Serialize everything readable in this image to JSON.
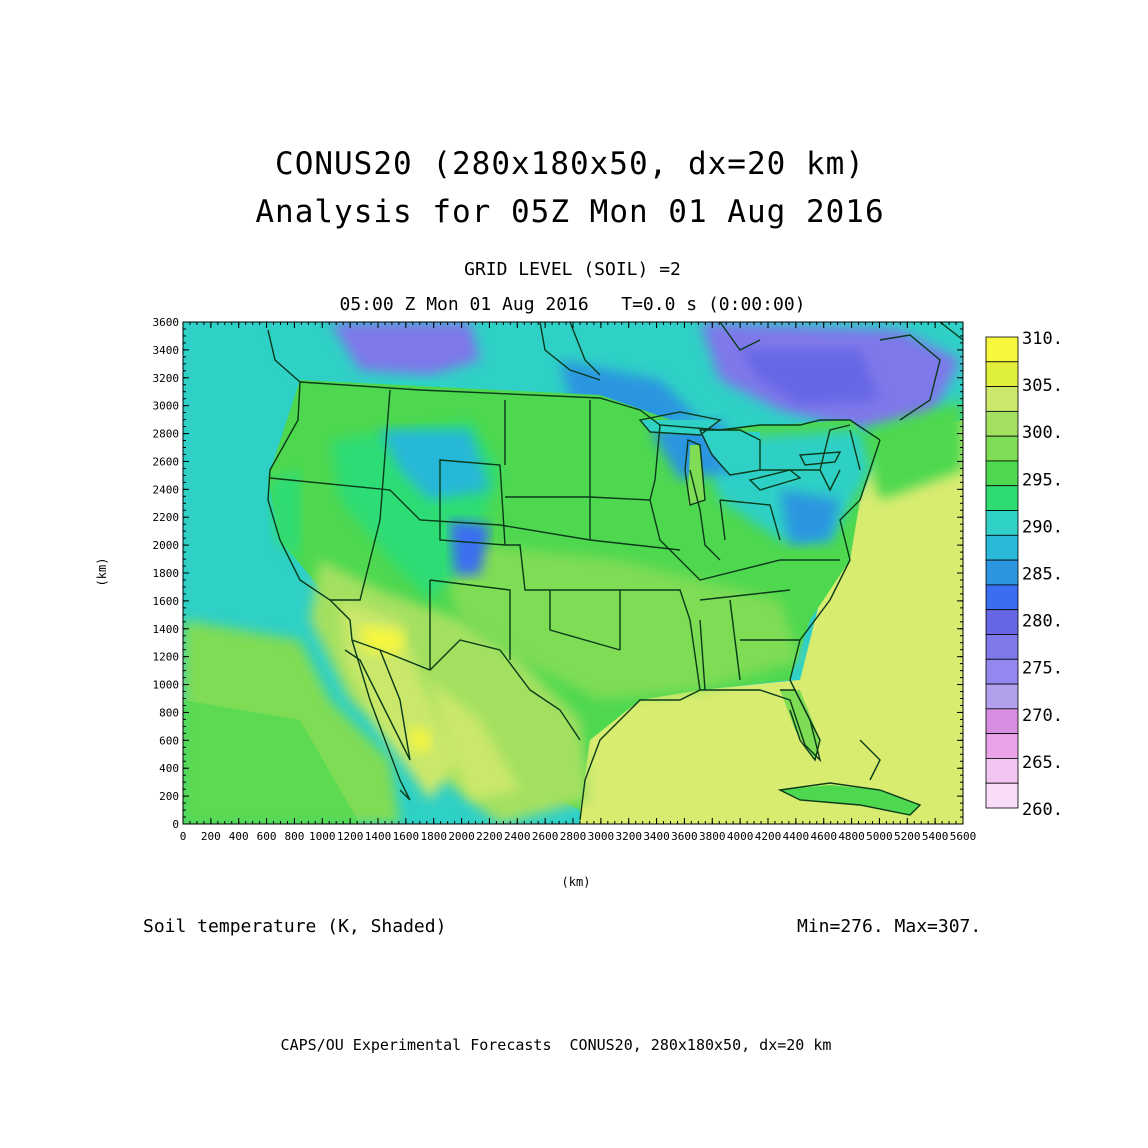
{
  "header": {
    "title_line1": "CONUS20 (280x180x50, dx=20 km)",
    "title_line2": "Analysis for 05Z Mon 01 Aug 2016",
    "subtitle_line1": "GRID LEVEL (SOIL) =2",
    "subtitle_line2": "05:00 Z Mon 01 Aug 2016   T=0.0 s (0:00:00)"
  },
  "map": {
    "x_axis_label": "(km)",
    "y_axis_label": "(km)",
    "x_ticks": [
      "0",
      "200",
      "400",
      "600",
      "800",
      "1000",
      "1200",
      "1400",
      "1600",
      "1800",
      "2000",
      "2200",
      "2400",
      "2600",
      "2800",
      "3000",
      "3200",
      "3400",
      "3600",
      "3800",
      "4000",
      "4200",
      "4400",
      "4600",
      "4800",
      "5000",
      "5200",
      "5400",
      "5600"
    ],
    "y_ticks": [
      "0",
      "200",
      "400",
      "600",
      "800",
      "1000",
      "1200",
      "1400",
      "1600",
      "1800",
      "2000",
      "2200",
      "2400",
      "2600",
      "2800",
      "3000",
      "3200",
      "3400",
      "3600"
    ],
    "x_range_km": [
      0,
      5600
    ],
    "y_range_km": [
      0,
      3600
    ],
    "field": "Soil temperature",
    "units": "K",
    "colors": {
      "ocean_west": "#2fd0c6",
      "ocean_east": "#d8ec70",
      "boundaries": "#0a3a1a"
    }
  },
  "colorbar": {
    "labels": [
      "310.",
      "305.",
      "300.",
      "295.",
      "290.",
      "285.",
      "280.",
      "275.",
      "270.",
      "265.",
      "260."
    ],
    "levels": [
      {
        "value": 307.5,
        "color": "#f7f73e"
      },
      {
        "value": 305,
        "color": "#e0f03a"
      },
      {
        "value": 302.5,
        "color": "#cbe86a"
      },
      {
        "value": 300,
        "color": "#a4e060"
      },
      {
        "value": 297.5,
        "color": "#7fdc55"
      },
      {
        "value": 295,
        "color": "#4ed850"
      },
      {
        "value": 292.5,
        "color": "#2fdc74"
      },
      {
        "value": 290,
        "color": "#2fd0c6"
      },
      {
        "value": 287.5,
        "color": "#28b8d8"
      },
      {
        "value": 285,
        "color": "#2c96e0"
      },
      {
        "value": 282.5,
        "color": "#3a6ef0"
      },
      {
        "value": 280,
        "color": "#6666e6"
      },
      {
        "value": 277.5,
        "color": "#7e78ea"
      },
      {
        "value": 275,
        "color": "#9488f0"
      },
      {
        "value": 272.5,
        "color": "#b2a0ec"
      },
      {
        "value": 270,
        "color": "#d88ee0"
      },
      {
        "value": 267.5,
        "color": "#e9a2e8"
      },
      {
        "value": 265,
        "color": "#f2c6f0"
      },
      {
        "value": 262.5,
        "color": "#f8dcf8"
      }
    ]
  },
  "stats": {
    "variable_label": "Soil temperature (K, Shaded)",
    "minmax": "Min=276. Max=307."
  },
  "footer": "CAPS/OU Experimental Forecasts  CONUS20, 280x180x50, dx=20 km"
}
